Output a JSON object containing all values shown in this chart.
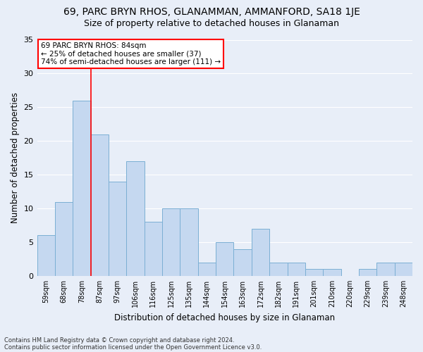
{
  "title": "69, PARC BRYN RHOS, GLANAMMAN, AMMANFORD, SA18 1JE",
  "subtitle": "Size of property relative to detached houses in Glanaman",
  "xlabel": "Distribution of detached houses by size in Glanaman",
  "ylabel": "Number of detached properties",
  "bar_color": "#c5d8f0",
  "bar_edge_color": "#7bafd4",
  "background_color": "#e8eef8",
  "categories": [
    "59sqm",
    "68sqm",
    "78sqm",
    "87sqm",
    "97sqm",
    "106sqm",
    "116sqm",
    "125sqm",
    "135sqm",
    "144sqm",
    "154sqm",
    "163sqm",
    "172sqm",
    "182sqm",
    "191sqm",
    "201sqm",
    "210sqm",
    "220sqm",
    "229sqm",
    "239sqm",
    "248sqm"
  ],
  "values": [
    6,
    11,
    26,
    21,
    14,
    17,
    8,
    10,
    10,
    2,
    5,
    4,
    7,
    2,
    2,
    1,
    1,
    0,
    1,
    2,
    2
  ],
  "vline_x": 2.5,
  "annotation_text": "69 PARC BRYN RHOS: 84sqm\n← 25% of detached houses are smaller (37)\n74% of semi-detached houses are larger (111) →",
  "annotation_box_color": "white",
  "annotation_box_edge": "red",
  "vline_color": "red",
  "ylim": [
    0,
    35
  ],
  "yticks": [
    0,
    5,
    10,
    15,
    20,
    25,
    30,
    35
  ],
  "footer_line1": "Contains HM Land Registry data © Crown copyright and database right 2024.",
  "footer_line2": "Contains public sector information licensed under the Open Government Licence v3.0.",
  "grid_color": "#ffffff",
  "title_fontsize": 10,
  "subtitle_fontsize": 9
}
